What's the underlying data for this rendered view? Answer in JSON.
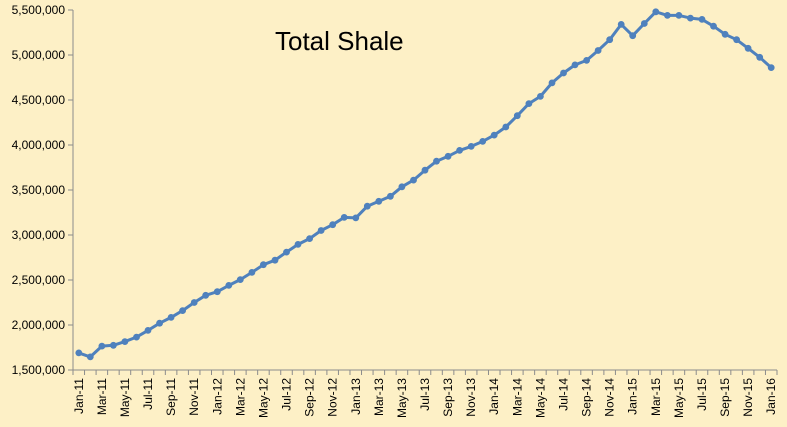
{
  "chart_data": {
    "type": "line",
    "title": "Total Shale",
    "xlabel": "",
    "ylabel": "",
    "grid": false,
    "legend": "none",
    "ylim": [
      1500000,
      5500000
    ],
    "yticks": [
      1500000,
      2000000,
      2500000,
      3000000,
      3500000,
      4000000,
      4500000,
      5000000,
      5500000
    ],
    "ytick_labels": [
      "1,500,000",
      "2,000,000",
      "2,500,000",
      "3,000,000",
      "3,500,000",
      "4,000,000",
      "4,500,000",
      "5,000,000",
      "5,500,000"
    ],
    "x": [
      "Jan-11",
      "Feb-11",
      "Mar-11",
      "Apr-11",
      "May-11",
      "Jun-11",
      "Jul-11",
      "Aug-11",
      "Sep-11",
      "Oct-11",
      "Nov-11",
      "Dec-11",
      "Jan-12",
      "Feb-12",
      "Mar-12",
      "Apr-12",
      "May-12",
      "Jun-12",
      "Jul-12",
      "Aug-12",
      "Sep-12",
      "Oct-12",
      "Nov-12",
      "Dec-12",
      "Jan-13",
      "Feb-13",
      "Mar-13",
      "Apr-13",
      "May-13",
      "Jun-13",
      "Jul-13",
      "Aug-13",
      "Sep-13",
      "Oct-13",
      "Nov-13",
      "Dec-13",
      "Jan-14",
      "Feb-14",
      "Mar-14",
      "Apr-14",
      "May-14",
      "Jun-14",
      "Jul-14",
      "Aug-14",
      "Sep-14",
      "Oct-14",
      "Nov-14",
      "Dec-14",
      "Jan-15",
      "Feb-15",
      "Mar-15",
      "Apr-15",
      "May-15",
      "Jun-15",
      "Jul-15",
      "Aug-15",
      "Sep-15",
      "Oct-15",
      "Nov-15",
      "Dec-15",
      "Jan-16"
    ],
    "xtick_labels": [
      "Jan-11",
      "Mar-11",
      "May-11",
      "Jul-11",
      "Sep-11",
      "Nov-11",
      "Jan-12",
      "Mar-12",
      "May-12",
      "Jul-12",
      "Sep-12",
      "Nov-12",
      "Jan-13",
      "Mar-13",
      "May-13",
      "Jul-13",
      "Sep-13",
      "Nov-13",
      "Jan-14",
      "Mar-14",
      "May-14",
      "Jul-14",
      "Sep-14",
      "Nov-14",
      "Jan-15",
      "Mar-15",
      "May-15",
      "Jul-15",
      "Sep-15",
      "Nov-15",
      "Jan-16"
    ],
    "series": [
      {
        "color": "#4f81bd",
        "values": [
          1690000,
          1645000,
          1765000,
          1775000,
          1815000,
          1865000,
          1940000,
          2020000,
          2085000,
          2160000,
          2250000,
          2330000,
          2370000,
          2440000,
          2505000,
          2585000,
          2670000,
          2720000,
          2810000,
          2895000,
          2960000,
          3050000,
          3115000,
          3195000,
          3190000,
          3320000,
          3375000,
          3430000,
          3535000,
          3610000,
          3720000,
          3820000,
          3875000,
          3940000,
          3985000,
          4040000,
          4110000,
          4200000,
          4325000,
          4460000,
          4540000,
          4690000,
          4800000,
          4890000,
          4940000,
          5050000,
          5170000,
          5340000,
          5215000,
          5350000,
          5480000,
          5440000,
          5440000,
          5410000,
          5395000,
          5320000,
          5230000,
          5170000,
          5075000,
          4975000,
          4860000
        ]
      }
    ]
  }
}
